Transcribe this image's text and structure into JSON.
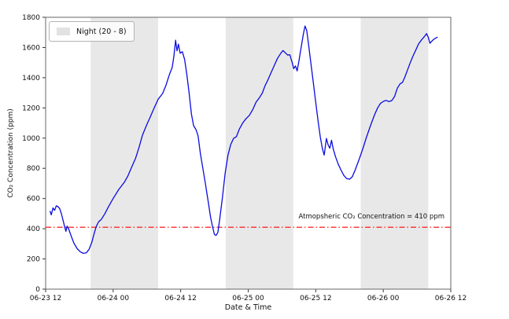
{
  "chart_data": {
    "type": "line",
    "title": "",
    "xlabel": "Date & Time",
    "ylabel": "CO₂ Concentration (ppm)",
    "xlim_hours": [
      0,
      72
    ],
    "ylim": [
      0,
      1800
    ],
    "grid": false,
    "yticks": [
      0,
      200,
      400,
      600,
      800,
      1000,
      1200,
      1400,
      1600,
      1800
    ],
    "xticks": [
      {
        "hour": 0,
        "label": "06-23 12"
      },
      {
        "hour": 12,
        "label": "06-24 00"
      },
      {
        "hour": 24,
        "label": "06-24 12"
      },
      {
        "hour": 36,
        "label": "06-25 00"
      },
      {
        "hour": 48,
        "label": "06-25 12"
      },
      {
        "hour": 60,
        "label": "06-26 00"
      },
      {
        "hour": 72,
        "label": "06-26 12"
      }
    ],
    "night_bands_hours": [
      [
        8,
        20
      ],
      [
        32,
        44
      ],
      [
        56,
        68
      ]
    ],
    "legend": {
      "label": "Night (20 - 8)",
      "swatch_color": "#e2e2e2",
      "position": "upper-left"
    },
    "reference_line": {
      "value": 410,
      "label": "Atmopsheric CO₂ Concentration = 410 ppm",
      "color": "#ff0000",
      "style": "dash-dot"
    },
    "colors": {
      "line": "#0b0bdf",
      "night_band": "#e8e8e8",
      "spine": "#666666",
      "tick": "#333333"
    },
    "series": [
      {
        "name": "CO2 concentration",
        "color": "#0b0bdf",
        "points": [
          [
            0.8,
            515
          ],
          [
            1.0,
            492
          ],
          [
            1.3,
            538
          ],
          [
            1.6,
            522
          ],
          [
            1.9,
            552
          ],
          [
            2.2,
            546
          ],
          [
            2.5,
            534
          ],
          [
            2.8,
            500
          ],
          [
            3.1,
            455
          ],
          [
            3.4,
            410
          ],
          [
            3.6,
            383
          ],
          [
            3.8,
            417
          ],
          [
            4.1,
            398
          ],
          [
            4.5,
            356
          ],
          [
            5.0,
            306
          ],
          [
            5.6,
            268
          ],
          [
            6.2,
            246
          ],
          [
            6.7,
            237
          ],
          [
            7.2,
            240
          ],
          [
            7.7,
            262
          ],
          [
            8.2,
            310
          ],
          [
            8.7,
            378
          ],
          [
            9.0,
            415
          ],
          [
            9.4,
            445
          ],
          [
            9.9,
            462
          ],
          [
            10.5,
            498
          ],
          [
            11.2,
            548
          ],
          [
            12,
            600
          ],
          [
            13,
            660
          ],
          [
            14,
            708
          ],
          [
            14.6,
            748
          ],
          [
            15.2,
            800
          ],
          [
            16,
            868
          ],
          [
            16.6,
            938
          ],
          [
            17.2,
            1018
          ],
          [
            18,
            1092
          ],
          [
            18.6,
            1140
          ],
          [
            19.2,
            1192
          ],
          [
            20,
            1258
          ],
          [
            20.8,
            1296
          ],
          [
            21.4,
            1352
          ],
          [
            22,
            1422
          ],
          [
            22.5,
            1468
          ],
          [
            22.8,
            1545
          ],
          [
            23.1,
            1648
          ],
          [
            23.35,
            1578
          ],
          [
            23.6,
            1622
          ],
          [
            23.9,
            1562
          ],
          [
            24.3,
            1572
          ],
          [
            24.7,
            1520
          ],
          [
            25.1,
            1420
          ],
          [
            25.5,
            1298
          ],
          [
            25.9,
            1160
          ],
          [
            26.3,
            1082
          ],
          [
            26.7,
            1058
          ],
          [
            27.1,
            1015
          ],
          [
            27.5,
            898
          ],
          [
            27.9,
            808
          ],
          [
            28.4,
            698
          ],
          [
            28.9,
            578
          ],
          [
            29.3,
            478
          ],
          [
            29.7,
            408
          ],
          [
            30.0,
            362
          ],
          [
            30.3,
            356
          ],
          [
            30.6,
            375
          ],
          [
            30.9,
            452
          ],
          [
            31.4,
            600
          ],
          [
            31.9,
            768
          ],
          [
            32.4,
            888
          ],
          [
            32.9,
            958
          ],
          [
            33.4,
            998
          ],
          [
            33.9,
            1010
          ],
          [
            34.4,
            1058
          ],
          [
            35,
            1098
          ],
          [
            35.6,
            1128
          ],
          [
            36.2,
            1150
          ],
          [
            36.8,
            1188
          ],
          [
            37.4,
            1238
          ],
          [
            38,
            1268
          ],
          [
            38.5,
            1298
          ],
          [
            39,
            1348
          ],
          [
            39.5,
            1385
          ],
          [
            40,
            1428
          ],
          [
            40.6,
            1478
          ],
          [
            41.2,
            1528
          ],
          [
            41.8,
            1562
          ],
          [
            42.2,
            1580
          ],
          [
            42.6,
            1565
          ],
          [
            43,
            1550
          ],
          [
            43.4,
            1552
          ],
          [
            43.8,
            1502
          ],
          [
            44.1,
            1460
          ],
          [
            44.4,
            1478
          ],
          [
            44.7,
            1445
          ],
          [
            45,
            1508
          ],
          [
            45.4,
            1598
          ],
          [
            45.8,
            1688
          ],
          [
            46.1,
            1742
          ],
          [
            46.4,
            1712
          ],
          [
            46.8,
            1600
          ],
          [
            47.2,
            1478
          ],
          [
            47.6,
            1358
          ],
          [
            48,
            1238
          ],
          [
            48.4,
            1118
          ],
          [
            48.8,
            1008
          ],
          [
            49.2,
            928
          ],
          [
            49.5,
            888
          ],
          [
            49.9,
            998
          ],
          [
            50.2,
            955
          ],
          [
            50.5,
            933
          ],
          [
            50.8,
            986
          ],
          [
            51.1,
            930
          ],
          [
            51.5,
            878
          ],
          [
            52,
            828
          ],
          [
            52.5,
            788
          ],
          [
            53,
            753
          ],
          [
            53.5,
            732
          ],
          [
            54,
            728
          ],
          [
            54.5,
            744
          ],
          [
            55,
            788
          ],
          [
            55.5,
            838
          ],
          [
            56,
            890
          ],
          [
            56.5,
            944
          ],
          [
            57,
            1004
          ],
          [
            57.5,
            1058
          ],
          [
            58,
            1110
          ],
          [
            58.5,
            1158
          ],
          [
            59,
            1200
          ],
          [
            59.5,
            1230
          ],
          [
            60,
            1243
          ],
          [
            60.5,
            1250
          ],
          [
            61,
            1242
          ],
          [
            61.5,
            1248
          ],
          [
            62,
            1275
          ],
          [
            62.5,
            1330
          ],
          [
            63,
            1360
          ],
          [
            63.4,
            1368
          ],
          [
            63.8,
            1400
          ],
          [
            64.3,
            1450
          ],
          [
            64.8,
            1500
          ],
          [
            65.3,
            1545
          ],
          [
            65.8,
            1585
          ],
          [
            66.3,
            1625
          ],
          [
            66.8,
            1650
          ],
          [
            67.3,
            1672
          ],
          [
            67.7,
            1692
          ],
          [
            68.0,
            1668
          ],
          [
            68.3,
            1628
          ],
          [
            68.7,
            1645
          ],
          [
            69.1,
            1658
          ],
          [
            69.6,
            1668
          ]
        ]
      }
    ]
  }
}
